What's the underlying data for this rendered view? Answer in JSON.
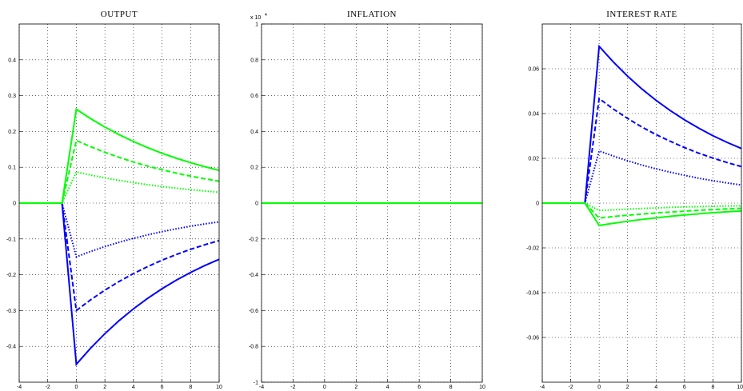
{
  "chart_data": [
    {
      "type": "line",
      "title": "OUTPUT",
      "grid": true,
      "x": [
        -4,
        -3,
        -2,
        -1,
        0,
        1,
        2,
        3,
        4,
        5,
        6,
        7,
        8,
        9,
        10
      ],
      "xlim": [
        -4,
        10
      ],
      "xticks": [
        -4,
        -2,
        0,
        2,
        4,
        6,
        8,
        10
      ],
      "ylim": [
        -0.5,
        0.5
      ],
      "yticks": [
        -0.4,
        -0.3,
        -0.2,
        -0.1,
        0,
        0.1,
        0.2,
        0.3,
        0.4
      ],
      "series": [
        {
          "color": "#0000ff",
          "style": "solid",
          "values": [
            0,
            0,
            0,
            0,
            -0.45,
            -0.405,
            -0.3645,
            -0.328,
            -0.2952,
            -0.2657,
            -0.2391,
            -0.2152,
            -0.1937,
            -0.1743,
            -0.1569
          ]
        },
        {
          "color": "#0000ff",
          "style": "dashed",
          "values": [
            0,
            0,
            0,
            0,
            -0.3,
            -0.27,
            -0.243,
            -0.2187,
            -0.1968,
            -0.1771,
            -0.1594,
            -0.1435,
            -0.1291,
            -0.1162,
            -0.1046
          ]
        },
        {
          "color": "#0000ff",
          "style": "dotted",
          "values": [
            0,
            0,
            0,
            0,
            -0.15,
            -0.135,
            -0.1215,
            -0.1094,
            -0.0984,
            -0.0886,
            -0.0797,
            -0.0717,
            -0.0646,
            -0.0581,
            -0.0523
          ]
        },
        {
          "color": "#00ff00",
          "style": "solid",
          "values": [
            0,
            0,
            0,
            0,
            0.262,
            0.2358,
            0.2122,
            0.191,
            0.1719,
            0.1547,
            0.1392,
            0.1253,
            0.1128,
            0.1015,
            0.0914
          ]
        },
        {
          "color": "#00ff00",
          "style": "dashed",
          "values": [
            0,
            0,
            0,
            0,
            0.175,
            0.1575,
            0.1418,
            0.1276,
            0.1148,
            0.1033,
            0.093,
            0.0837,
            0.0753,
            0.0678,
            0.061
          ]
        },
        {
          "color": "#00ff00",
          "style": "dotted",
          "values": [
            0,
            0,
            0,
            0,
            0.087,
            0.0783,
            0.0705,
            0.0634,
            0.0571,
            0.0514,
            0.0462,
            0.0416,
            0.0375,
            0.0337,
            0.0303
          ]
        }
      ]
    },
    {
      "type": "line",
      "title": "INFLATION",
      "grid": true,
      "exponent_label": "x 10",
      "exponent": "4",
      "x": [
        -4,
        -3,
        -2,
        -1,
        0,
        1,
        2,
        3,
        4,
        5,
        6,
        7,
        8,
        9,
        10
      ],
      "xlim": [
        -4,
        10
      ],
      "xticks": [
        -4,
        -2,
        0,
        2,
        4,
        6,
        8,
        10
      ],
      "ylim": [
        -1,
        1
      ],
      "yticks": [
        -1,
        -0.8,
        -0.6,
        -0.4,
        -0.2,
        0,
        0.2,
        0.4,
        0.6,
        0.8,
        1
      ],
      "series": [
        {
          "color": "#0000ff",
          "style": "solid",
          "values": [
            0,
            0,
            0,
            0,
            0,
            0,
            0,
            0,
            0,
            0,
            0,
            0,
            0,
            0,
            0
          ]
        },
        {
          "color": "#0000ff",
          "style": "dashed",
          "values": [
            0,
            0,
            0,
            0,
            0,
            0,
            0,
            0,
            0,
            0,
            0,
            0,
            0,
            0,
            0
          ]
        },
        {
          "color": "#0000ff",
          "style": "dotted",
          "values": [
            0,
            0,
            0,
            0,
            0,
            0,
            0,
            0,
            0,
            0,
            0,
            0,
            0,
            0,
            0
          ]
        },
        {
          "color": "#00ff00",
          "style": "dotted",
          "values": [
            0,
            0,
            0,
            0,
            0,
            0,
            0,
            0,
            0,
            0,
            0,
            0,
            0,
            0,
            0
          ]
        },
        {
          "color": "#00ff00",
          "style": "dashed",
          "values": [
            0,
            0,
            0,
            0,
            0,
            0,
            0,
            0,
            0,
            0,
            0,
            0,
            0,
            0,
            0
          ]
        },
        {
          "color": "#00ff00",
          "style": "solid",
          "values": [
            0,
            0,
            0,
            0,
            0,
            0,
            0,
            0,
            0,
            0,
            0,
            0,
            0,
            0,
            0
          ]
        }
      ]
    },
    {
      "type": "line",
      "title": "INTEREST RATE",
      "grid": true,
      "x": [
        -4,
        -3,
        -2,
        -1,
        0,
        1,
        2,
        3,
        4,
        5,
        6,
        7,
        8,
        9,
        10
      ],
      "xlim": [
        -4,
        10
      ],
      "xticks": [
        -4,
        -2,
        0,
        2,
        4,
        6,
        8,
        10
      ],
      "ylim": [
        -0.08,
        0.08
      ],
      "yticks": [
        -0.06,
        -0.04,
        -0.02,
        0,
        0.02,
        0.04,
        0.06
      ],
      "series": [
        {
          "color": "#0000ff",
          "style": "solid",
          "values": [
            0,
            0,
            0,
            0,
            0.07,
            0.063,
            0.0567,
            0.051,
            0.0459,
            0.0413,
            0.0372,
            0.0335,
            0.0301,
            0.0271,
            0.0244
          ]
        },
        {
          "color": "#0000ff",
          "style": "dashed",
          "values": [
            0,
            0,
            0,
            0,
            0.0467,
            0.042,
            0.0378,
            0.034,
            0.0306,
            0.0276,
            0.0248,
            0.0223,
            0.0201,
            0.0181,
            0.0163
          ]
        },
        {
          "color": "#0000ff",
          "style": "dotted",
          "values": [
            0,
            0,
            0,
            0,
            0.0233,
            0.021,
            0.0189,
            0.017,
            0.0153,
            0.0138,
            0.0124,
            0.0111,
            0.01,
            0.009,
            0.0081
          ]
        },
        {
          "color": "#00ff00",
          "style": "solid",
          "values": [
            0,
            0,
            0,
            0,
            -0.01,
            -0.009,
            -0.0081,
            -0.0073,
            -0.0066,
            -0.0059,
            -0.0053,
            -0.0048,
            -0.0043,
            -0.0039,
            -0.0035
          ]
        },
        {
          "color": "#00ff00",
          "style": "dashed",
          "values": [
            0,
            0,
            0,
            0,
            -0.0067,
            -0.006,
            -0.0054,
            -0.0049,
            -0.0044,
            -0.004,
            -0.0036,
            -0.0032,
            -0.0029,
            -0.0026,
            -0.0023
          ]
        },
        {
          "color": "#00ff00",
          "style": "dotted",
          "values": [
            0,
            0,
            0,
            0,
            -0.0033,
            -0.003,
            -0.0027,
            -0.0024,
            -0.0022,
            -0.0019,
            -0.0017,
            -0.0016,
            -0.0014,
            -0.0013,
            -0.0012
          ]
        }
      ]
    }
  ]
}
